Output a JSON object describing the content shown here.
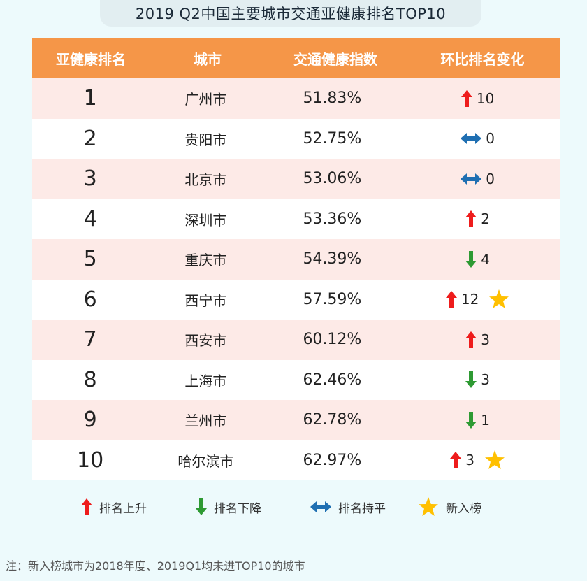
{
  "title": "2019 Q2中国主要城市交通亚健康排名TOP10",
  "headers": [
    "亚健康排名",
    "城市",
    "交通健康指数",
    "环比排名变化"
  ],
  "rows": [
    {
      "rank": "1",
      "city": "广州市",
      "index": "51.83%",
      "dir": "up",
      "change": "10",
      "new": false
    },
    {
      "rank": "2",
      "city": "贵阳市",
      "index": "52.75%",
      "dir": "flat",
      "change": "0",
      "new": false
    },
    {
      "rank": "3",
      "city": "北京市",
      "index": "53.06%",
      "dir": "flat",
      "change": "0",
      "new": false
    },
    {
      "rank": "4",
      "city": "深圳市",
      "index": "53.36%",
      "dir": "up",
      "change": "2",
      "new": false
    },
    {
      "rank": "5",
      "city": "重庆市",
      "index": "54.39%",
      "dir": "down",
      "change": "4",
      "new": false
    },
    {
      "rank": "6",
      "city": "西宁市",
      "index": "57.59%",
      "dir": "up",
      "change": "12",
      "new": true
    },
    {
      "rank": "7",
      "city": "西安市",
      "index": "60.12%",
      "dir": "up",
      "change": "3",
      "new": false
    },
    {
      "rank": "8",
      "city": "上海市",
      "index": "62.46%",
      "dir": "down",
      "change": "3",
      "new": false
    },
    {
      "rank": "9",
      "city": "兰州市",
      "index": "62.78%",
      "dir": "down",
      "change": "1",
      "new": false
    },
    {
      "rank": "10",
      "city": "哈尔滨市",
      "index": "62.97%",
      "dir": "up",
      "change": "3",
      "new": true
    }
  ],
  "legend": {
    "up": "排名上升",
    "down": "排名下降",
    "flat": "排名持平",
    "new": "新入榜"
  },
  "note": "注：新入榜城市为2018年度、2019Q1均未进TOP10的城市",
  "colors": {
    "header": "#f59648",
    "up": "#ee1c1c",
    "down": "#2e9a33",
    "flat": "#1f6fb2",
    "star": "#ffc000"
  },
  "icons": {
    "up": "arrow-up-icon",
    "down": "arrow-down-icon",
    "flat": "double-arrow-icon",
    "new": "star-icon"
  }
}
